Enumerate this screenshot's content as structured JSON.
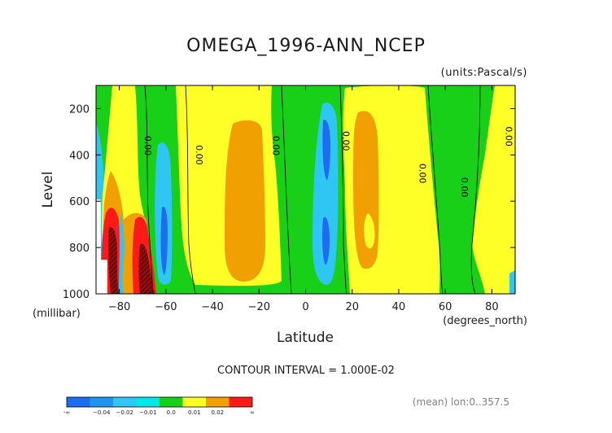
{
  "chart": {
    "title": "OMEGA_1996-ANN_NCEP",
    "units_label": "(units:Pascal/s)",
    "y_label": "Level",
    "y_unit_label": "(millibar)",
    "x_label": "Latitude",
    "x_unit_label": "(degrees_north)",
    "contour_interval_text": "CONTOUR INTERVAL = 1.000E-02",
    "mean_text": "(mean) lon:0..357.5",
    "contour_value_label": "0.00"
  },
  "chart_data": {
    "type": "heatmap",
    "title": "OMEGA_1996-ANN_NCEP",
    "xlabel": "Latitude",
    "ylabel": "Level",
    "xlim": [
      -90,
      90
    ],
    "ylim": [
      1000,
      100
    ],
    "x_ticks": [
      -80,
      -60,
      -40,
      -20,
      0,
      20,
      40,
      60,
      80
    ],
    "y_ticks": [
      200,
      400,
      600,
      800,
      1000
    ],
    "x_tick_labels": [
      "−80",
      "−60",
      "−40",
      "−20",
      "0",
      "20",
      "40",
      "60",
      "80"
    ],
    "y_tick_labels": [
      "200",
      "400",
      "600",
      "800",
      "1000"
    ],
    "contour_interval": 0.01,
    "legend": {
      "placement": "bottom-left",
      "labels": [
        "-∞",
        "−0.04",
        "−0.02",
        "−0.01",
        "0.0",
        "0.01",
        "0.02",
        "∞"
      ],
      "colors": [
        "#1e6cf0",
        "#1e96f0",
        "#30c6f4",
        "#00e8e8",
        "#18d018",
        "#ffff28",
        "#f0a000",
        "#ff1a1a"
      ]
    },
    "zero_contour_labels": [
      {
        "lat": -69,
        "lev": 360
      },
      {
        "lat": -47,
        "lev": 400
      },
      {
        "lat": -14,
        "lev": 360
      },
      {
        "lat": 16,
        "lev": 340
      },
      {
        "lat": 49,
        "lev": 480
      },
      {
        "lat": 67,
        "lev": 540
      },
      {
        "lat": 86,
        "lev": 320
      }
    ],
    "regions": [
      {
        "level": "0 to 0.01",
        "color": "yellow",
        "lat_range": [
          -87,
          -72
        ],
        "lev_range": [
          100,
          700
        ]
      },
      {
        "level": "-0.01 to 0",
        "color": "cyan",
        "lat_range": [
          -66,
          -57
        ],
        "lev_range": [
          350,
          950
        ]
      },
      {
        "level": "0 to 0.01",
        "color": "yellow",
        "lat_range": [
          -53,
          -12
        ],
        "lev_range": [
          100,
          950
        ]
      },
      {
        "level": "0.01 to 0.02",
        "color": "orange",
        "lat_range": [
          -35,
          -15
        ],
        "lev_range": [
          250,
          920
        ]
      },
      {
        "level": "-0.01 to 0",
        "color": "cyan",
        "lat_range": [
          3,
          13
        ],
        "lev_range": [
          160,
          950
        ]
      },
      {
        "level": "-0.02 to -0.01",
        "color": "blue",
        "lat_range": [
          6,
          10
        ],
        "lev_range": [
          250,
          900
        ]
      },
      {
        "level": "0 to 0.01",
        "color": "yellow",
        "lat_range": [
          17,
          53
        ],
        "lev_range": [
          100,
          1000
        ]
      },
      {
        "level": "0.01 to 0.02",
        "color": "orange",
        "lat_range": [
          22,
          32
        ],
        "lev_range": [
          230,
          880
        ]
      },
      {
        "level": "0 to 0.01",
        "color": "yellow",
        "lat_range": [
          60,
          88
        ],
        "lev_range": [
          100,
          1000
        ]
      },
      {
        "level": "> 0.02",
        "color": "red",
        "lat_range": [
          -84,
          -66
        ],
        "lev_range": [
          640,
          1000
        ]
      }
    ]
  }
}
